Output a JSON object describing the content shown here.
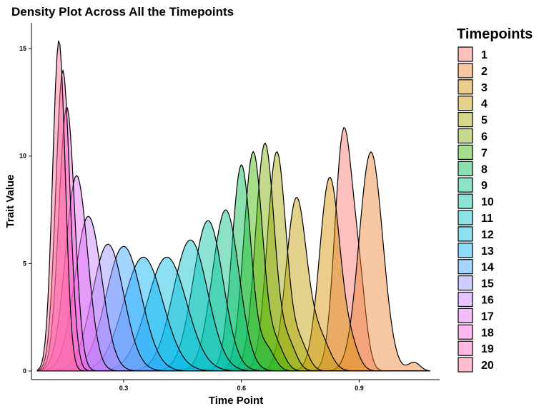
{
  "chart_data": {
    "type": "area",
    "title": "Density Plot Across All the Timepoints",
    "xlabel": "Time Point",
    "ylabel": "Trait Value",
    "xlim": [
      0.065,
      1.105
    ],
    "ylim": [
      -0.4,
      16.2
    ],
    "x_ticks": [
      0.3,
      0.6,
      0.9
    ],
    "y_ticks": [
      0,
      5,
      10,
      15
    ],
    "x_tick_labels": [
      "0.3",
      "0.6",
      "0.9"
    ],
    "y_tick_labels": [
      "0",
      "5",
      "10",
      "15"
    ],
    "grid": false,
    "legend": {
      "title": "Timepoints",
      "position": "right",
      "labels": [
        "1",
        "2",
        "3",
        "4",
        "5",
        "6",
        "7",
        "8",
        "9",
        "10",
        "11",
        "12",
        "13",
        "14",
        "15",
        "16",
        "17",
        "18",
        "19",
        "20"
      ]
    },
    "baseline_range": [
      0.08,
      1.08
    ],
    "series": [
      {
        "name": "1",
        "color": "#F8766D",
        "peaks": [
          [
            0.86,
            11.0,
            0.022
          ],
          [
            0.9,
            3.6,
            0.018
          ]
        ]
      },
      {
        "name": "2",
        "color": "#EA8331",
        "peaks": [
          [
            0.93,
            10.2,
            0.03
          ],
          [
            1.04,
            0.4,
            0.015
          ]
        ]
      },
      {
        "name": "3",
        "color": "#D89000",
        "peaks": [
          [
            0.825,
            9.0,
            0.026
          ],
          [
            0.88,
            1.0,
            0.02
          ]
        ]
      },
      {
        "name": "4",
        "color": "#C09B00",
        "peaks": [
          [
            0.74,
            8.0,
            0.026
          ],
          [
            0.8,
            1.5,
            0.025
          ]
        ]
      },
      {
        "name": "5",
        "color": "#A3A500",
        "peaks": [
          [
            0.69,
            10.2,
            0.024
          ],
          [
            0.75,
            1.2,
            0.02
          ]
        ]
      },
      {
        "name": "6",
        "color": "#7CAE00",
        "peaks": [
          [
            0.66,
            10.6,
            0.024
          ],
          [
            0.72,
            1.2,
            0.02
          ]
        ]
      },
      {
        "name": "7",
        "color": "#39B600",
        "peaks": [
          [
            0.63,
            10.2,
            0.024
          ],
          [
            0.69,
            1.1,
            0.02
          ]
        ]
      },
      {
        "name": "8",
        "color": "#00BB4E",
        "peaks": [
          [
            0.6,
            9.6,
            0.024
          ],
          [
            0.665,
            1.0,
            0.02
          ]
        ]
      },
      {
        "name": "9",
        "color": "#00BF7D",
        "peaks": [
          [
            0.56,
            7.5,
            0.034
          ]
        ]
      },
      {
        "name": "10",
        "color": "#00C1A3",
        "peaks": [
          [
            0.515,
            7.0,
            0.038
          ]
        ]
      },
      {
        "name": "11",
        "color": "#00BFC4",
        "peaks": [
          [
            0.47,
            6.1,
            0.044
          ]
        ]
      },
      {
        "name": "12",
        "color": "#00BAE0",
        "peaks": [
          [
            0.41,
            5.3,
            0.05
          ]
        ]
      },
      {
        "name": "13",
        "color": "#00B0F6",
        "peaks": [
          [
            0.35,
            5.3,
            0.05
          ]
        ]
      },
      {
        "name": "14",
        "color": "#35A2FF",
        "peaks": [
          [
            0.3,
            5.8,
            0.045
          ]
        ]
      },
      {
        "name": "15",
        "color": "#9590FF",
        "peaks": [
          [
            0.26,
            5.9,
            0.04
          ]
        ]
      },
      {
        "name": "16",
        "color": "#C77CFF",
        "peaks": [
          [
            0.21,
            7.2,
            0.034
          ]
        ]
      },
      {
        "name": "17",
        "color": "#E76BF3",
        "peaks": [
          [
            0.18,
            9.1,
            0.028
          ]
        ]
      },
      {
        "name": "18",
        "color": "#FA62DB",
        "peaks": [
          [
            0.155,
            12.3,
            0.02
          ]
        ]
      },
      {
        "name": "19",
        "color": "#FF62BC",
        "peaks": [
          [
            0.145,
            14.0,
            0.018
          ]
        ]
      },
      {
        "name": "20",
        "color": "#FF6C91",
        "peaks": [
          [
            0.135,
            15.4,
            0.016
          ]
        ]
      }
    ]
  }
}
